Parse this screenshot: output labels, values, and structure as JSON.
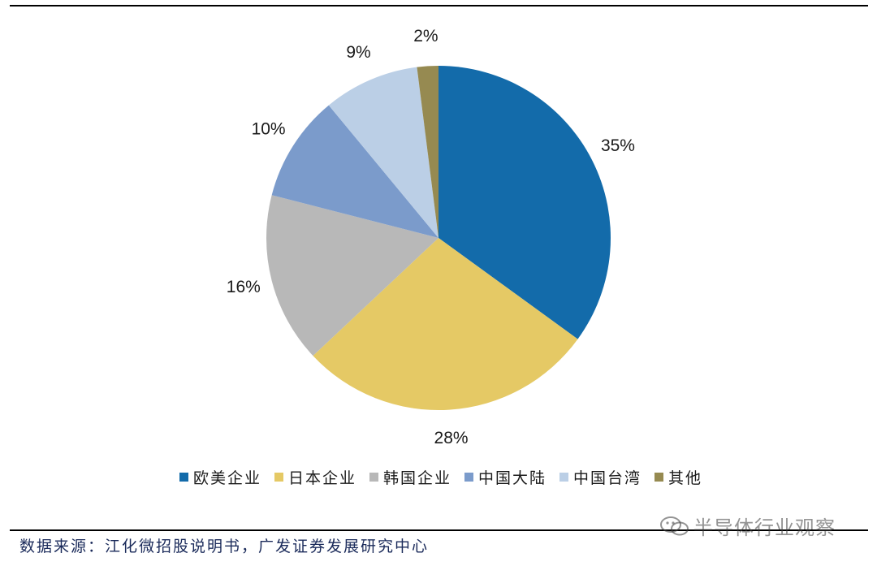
{
  "chart_data": {
    "type": "pie",
    "categories": [
      "欧美企业",
      "日本企业",
      "韩国企业",
      "中国大陆",
      "中国台湾",
      "其他"
    ],
    "values": [
      35,
      28,
      16,
      10,
      9,
      2
    ],
    "labels": [
      "35%",
      "28%",
      "16%",
      "10%",
      "9%",
      "2%"
    ],
    "colors": [
      "#136BAA",
      "#E5C965",
      "#B8B8B8",
      "#7B9BCB",
      "#BBCFE6",
      "#968A51"
    ],
    "start": "12 o'clock",
    "direction": "clockwise",
    "legend_position": "bottom"
  },
  "footer": {
    "source": "数据来源：江化微招股说明书，广发证券发展研究中心",
    "watermark": "半导体行业观察"
  }
}
